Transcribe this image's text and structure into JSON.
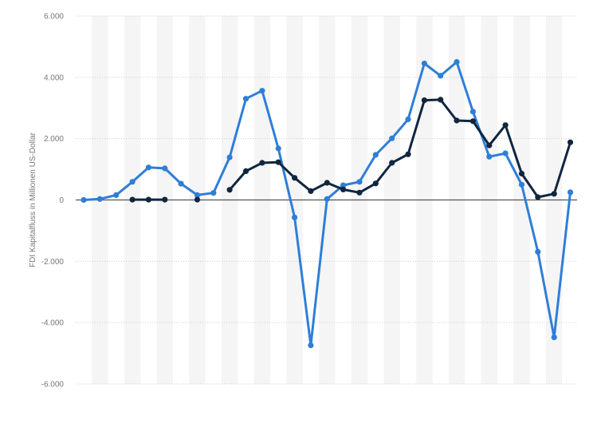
{
  "chart_data": {
    "type": "line",
    "title": "",
    "xlabel": "",
    "ylabel": "FDI Kapitalfluss in Millionen US-Dollar",
    "ylim": [
      -6000,
      6000
    ],
    "yticks": [
      6000,
      4000,
      2000,
      0,
      -2000,
      -4000,
      -6000
    ],
    "ytick_labels": [
      "6.000",
      "4.000",
      "2.000",
      "0",
      "-2.000",
      "-4.000",
      "-6.000"
    ],
    "grid": true,
    "zero_line": true,
    "x": [
      0,
      1,
      2,
      3,
      4,
      5,
      6,
      7,
      8,
      9,
      10,
      11,
      12,
      13,
      14,
      15,
      16,
      17,
      18,
      19,
      20,
      21,
      22,
      23,
      24,
      25,
      26,
      27,
      28,
      29,
      30
    ],
    "series": [
      {
        "color": "#2f7ed8",
        "values": [
          0,
          30,
          160,
          590,
          1060,
          1030,
          530,
          160,
          230,
          1390,
          3300,
          3560,
          1680,
          -570,
          -4740,
          30,
          480,
          590,
          1470,
          2010,
          2630,
          4450,
          4050,
          4500,
          2880,
          1410,
          1520,
          500,
          -1690,
          -4480,
          250
        ]
      },
      {
        "color": "#10263f",
        "values": [
          null,
          null,
          null,
          10,
          10,
          10,
          null,
          10,
          null,
          330,
          940,
          1210,
          1230,
          720,
          290,
          560,
          340,
          240,
          540,
          1210,
          1490,
          3250,
          3270,
          2590,
          2570,
          1780,
          2440,
          860,
          90,
          200,
          1880
        ]
      }
    ]
  }
}
